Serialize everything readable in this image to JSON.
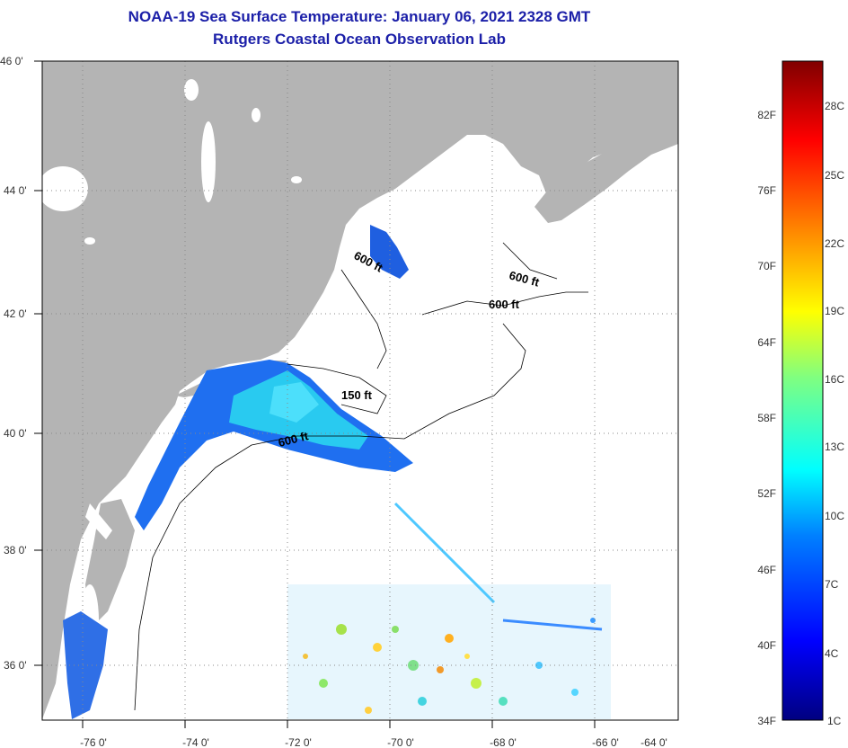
{
  "header": {
    "title": "NOAA-19 Sea Surface Temperature:  January 06, 2021 2328 GMT",
    "subtitle": "Rutgers Coastal Ocean Observation Lab"
  },
  "map": {
    "lon_ticks": [
      "-76 0'",
      "-74 0'",
      "-72 0'",
      "-70 0'",
      "-68 0'",
      "-66 0'",
      "-64 0'"
    ],
    "lat_ticks": [
      "46 0'",
      "44 0'",
      "42 0'",
      "40 0'",
      "38 0'",
      "36 0'"
    ],
    "contour_labels": [
      "600 ft",
      "600 ft",
      "600 ft",
      "150 ft",
      "600 ft"
    ],
    "colors": {
      "land": "#b4b4b4",
      "frame": "#000000",
      "grid": "#888888"
    }
  },
  "colorbar": {
    "fahrenheit": [
      "82F",
      "76F",
      "70F",
      "64F",
      "58F",
      "52F",
      "46F",
      "40F",
      "34F"
    ],
    "celsius": [
      "28C",
      "25C",
      "22C",
      "19C",
      "16C",
      "13C",
      "10C",
      "7C",
      "4C",
      "1C"
    ]
  }
}
